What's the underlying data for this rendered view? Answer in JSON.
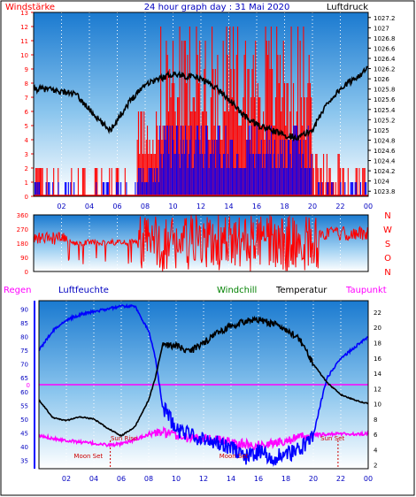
{
  "title": "24 hour graph day : 31 Mai 2020",
  "labels": {
    "windstaerke": "Windstärke",
    "luftdruck": "Luftdruck",
    "regen": "Regen",
    "luftfeuchte": "Luftfeuchte",
    "windchill": "Windchill",
    "temperatur": "Temperatur",
    "taupunkt": "Taupunkt",
    "sun_rise": "Sun Rise",
    "sun_set": "Sun Set",
    "moon_set_1": "Moon Set",
    "moon_set_2": "Moon Set"
  },
  "colors": {
    "wind_gust": "#ff0000",
    "wind_avg": "#0000ff",
    "pressure": "#000000",
    "direction": "#ff0000",
    "humidity": "#0000ff",
    "temperature": "#000000",
    "dewpoint": "#ff00ff",
    "rain": "#ff00ff",
    "windchill": "#008000",
    "label_blue": "#0000c0",
    "label_red": "#ff0000"
  },
  "chart_data": [
    {
      "type": "line",
      "name": "wind-pressure",
      "x_ticks": [
        "02",
        "04",
        "06",
        "08",
        "10",
        "12",
        "14",
        "16",
        "18",
        "20",
        "22",
        "00"
      ],
      "left_axis": {
        "label": "Windstärke",
        "ticks": [
          0,
          1,
          2,
          3,
          4,
          5,
          6,
          7,
          8,
          9,
          10,
          11,
          12,
          13
        ],
        "ylim": [
          0,
          13
        ]
      },
      "right_axis": {
        "label": "Luftdruck",
        "ticks": [
          "1023.8",
          "1024",
          "1024.2",
          "1024.4",
          "1024.6",
          "1024.8",
          "1025",
          "1025.2",
          "1025.4",
          "1025.6",
          "1025.8",
          "1026",
          "1026.2",
          "1026.4",
          "1026.6",
          "1026.8",
          "1027",
          "1027.2"
        ],
        "ylim": [
          1023.7,
          1027.3
        ]
      },
      "pressure_x": [
        0,
        1,
        2,
        3,
        4,
        5,
        5.5,
        6,
        7,
        8,
        9,
        10,
        11,
        12,
        13,
        14,
        15,
        16,
        17,
        18,
        19,
        20,
        21,
        22,
        23,
        24
      ],
      "pressure_y": [
        1025.8,
        1025.8,
        1025.75,
        1025.7,
        1025.4,
        1025.1,
        1025.0,
        1025.2,
        1025.6,
        1025.9,
        1026.0,
        1026.1,
        1026.05,
        1026.0,
        1025.85,
        1025.6,
        1025.3,
        1025.1,
        1025.0,
        1024.9,
        1024.85,
        1025.0,
        1025.5,
        1025.8,
        1026.0,
        1026.2
      ]
    },
    {
      "type": "line",
      "name": "wind-direction",
      "left_axis": {
        "ticks": [
          0,
          90,
          180,
          270,
          360
        ],
        "ylim": [
          0,
          360
        ]
      },
      "right_labels": [
        "N",
        "W",
        "S",
        "O",
        "N"
      ]
    },
    {
      "type": "line",
      "name": "humidity-temperature",
      "x_ticks": [
        "02",
        "04",
        "06",
        "08",
        "10",
        "12",
        "14",
        "16",
        "18",
        "20",
        "22",
        "00"
      ],
      "left_axis": {
        "label": "Luftfeuchte",
        "ticks": [
          35,
          40,
          45,
          50,
          55,
          60,
          65,
          70,
          75,
          80,
          85,
          90
        ],
        "ylim": [
          32,
          93
        ]
      },
      "right_axis": {
        "label": "Temperatur",
        "ticks": [
          2,
          4,
          6,
          8,
          10,
          12,
          14,
          16,
          18,
          20,
          22
        ],
        "ylim": [
          1.5,
          23.5
        ]
      },
      "rain_axis": {
        "label": "Regen",
        "value": "0",
        "rain_total": 0
      },
      "humidity_x": [
        0,
        1,
        2,
        3,
        4,
        5,
        6,
        7,
        8,
        8.5,
        9,
        10,
        11,
        12,
        13,
        14,
        15,
        16,
        17,
        18,
        19,
        20,
        20.5,
        21,
        22,
        23,
        24
      ],
      "humidity_y": [
        75,
        82,
        86,
        88,
        89,
        90,
        91,
        91,
        82,
        72,
        55,
        46,
        45,
        42,
        42,
        40,
        36,
        38,
        36,
        37,
        39,
        44,
        55,
        65,
        72,
        76,
        80
      ],
      "temperature_x": [
        0,
        1,
        2,
        3,
        4,
        5,
        6,
        7,
        8,
        8.5,
        9,
        10,
        11,
        12,
        13,
        14,
        15,
        16,
        17,
        18,
        19,
        20,
        21,
        22,
        23,
        24
      ],
      "temperature_y": [
        10.5,
        8.2,
        7.8,
        8.3,
        8.0,
        6.8,
        5.8,
        7.0,
        10.5,
        13.5,
        17.6,
        17.6,
        16.8,
        18.0,
        19.2,
        20.2,
        20.8,
        21.0,
        20.5,
        19.8,
        18.5,
        15.2,
        12.8,
        11.2,
        10.5,
        10.0
      ],
      "dewpoint_x": [
        0,
        1,
        2,
        3,
        4,
        5,
        6,
        7,
        8,
        9,
        10,
        11,
        12,
        13,
        14,
        15,
        16,
        17,
        18,
        19,
        20,
        21,
        22,
        23,
        24
      ],
      "dewpoint_y": [
        5.8,
        5.5,
        5.2,
        5.0,
        4.8,
        4.6,
        4.7,
        5.3,
        6.0,
        6.3,
        5.8,
        5.5,
        5.6,
        5.3,
        5.0,
        4.7,
        4.6,
        4.8,
        5.2,
        5.6,
        5.9,
        6.0,
        6.1,
        6.0,
        6.1
      ]
    }
  ]
}
